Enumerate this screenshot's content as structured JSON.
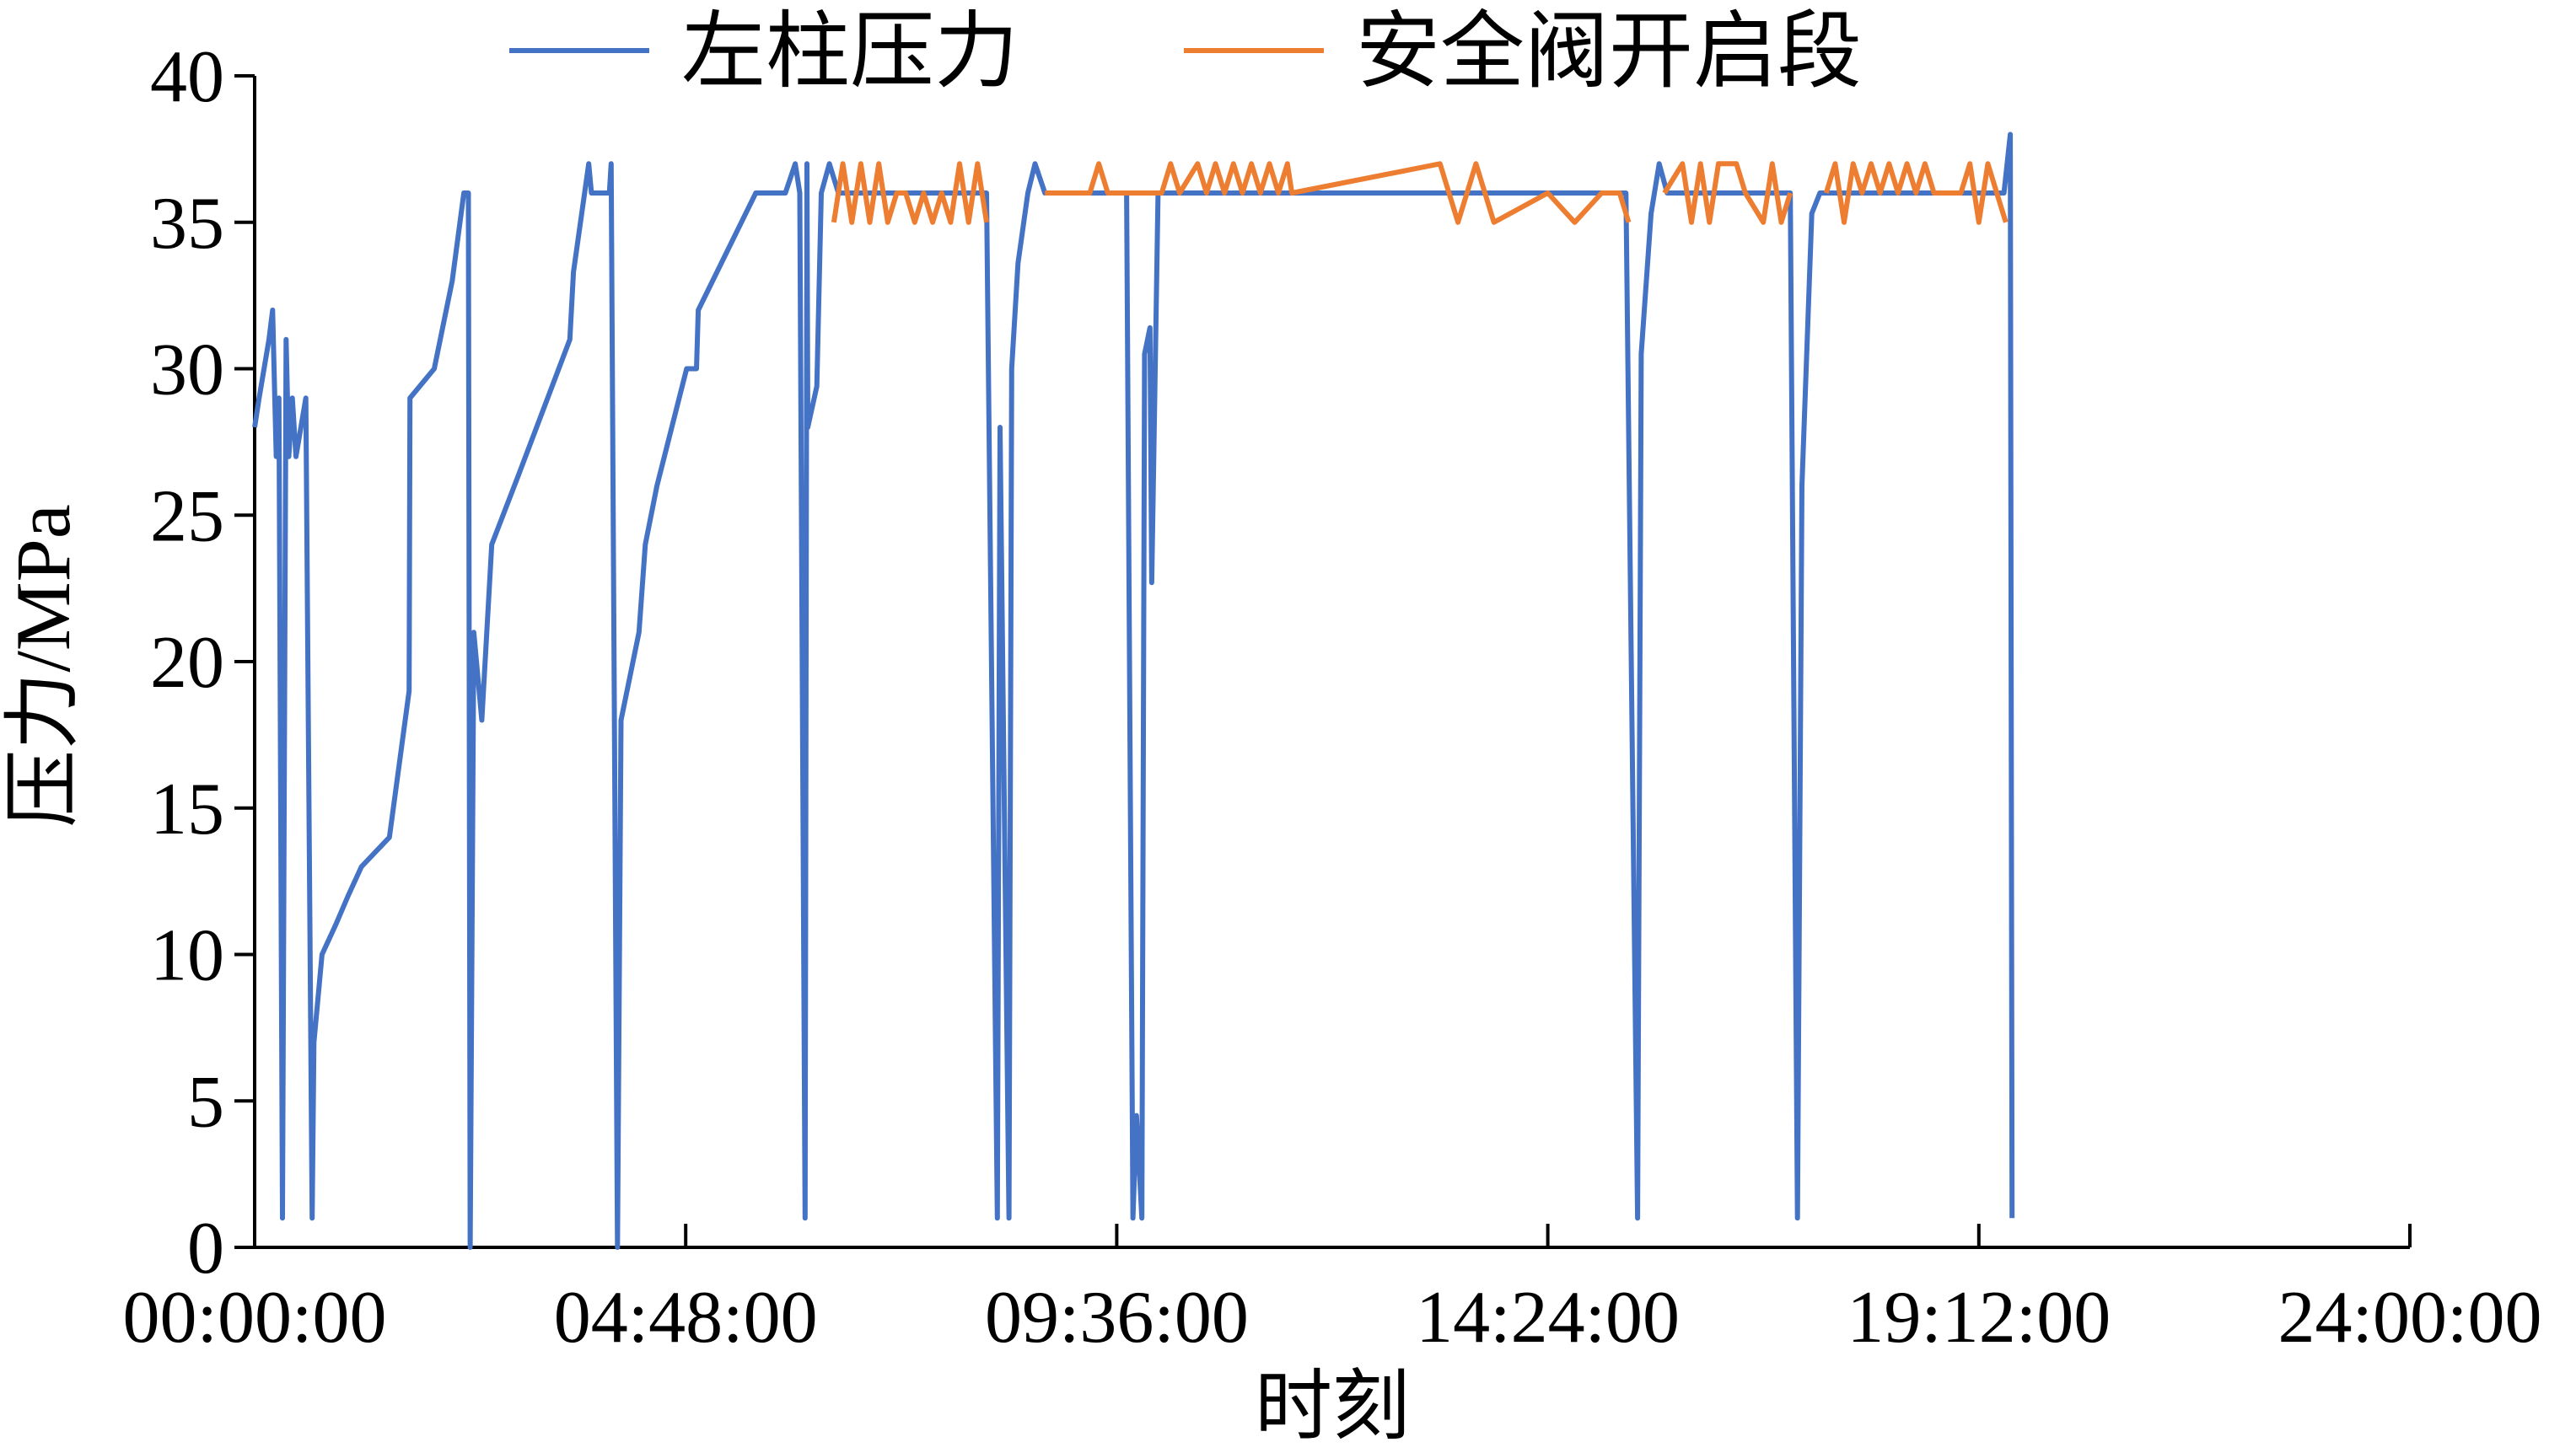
{
  "chart_data": {
    "type": "line",
    "x_label": "时刻",
    "y_label": "压力/MPa",
    "xlim": [
      0,
      24
    ],
    "xticks": [
      {
        "value": 0,
        "label": "00:00:00"
      },
      {
        "value": 4.8,
        "label": "04:48:00"
      },
      {
        "value": 9.6,
        "label": "09:36:00"
      },
      {
        "value": 14.4,
        "label": "14:24:00"
      },
      {
        "value": 19.2,
        "label": "19:12:00"
      },
      {
        "value": 24,
        "label": "24:00:00"
      }
    ],
    "ylim": [
      0,
      40
    ],
    "yticks": [
      0,
      5,
      10,
      15,
      20,
      25,
      30,
      35,
      40
    ],
    "series": [
      {
        "name": "左柱压力",
        "color": "#4472c4",
        "x": [
          0,
          0.05,
          0.16,
          0.2,
          0.24,
          0.27,
          0.31,
          0.35,
          0.38,
          0.42,
          0.46,
          0.57,
          0.64,
          0.66,
          0.75,
          0.9,
          1.04,
          1.19,
          1.5,
          1.72,
          1.73,
          2.0,
          2.2,
          2.33,
          2.38,
          2.4,
          2.44,
          2.53,
          2.64,
          2.93,
          3.51,
          3.55,
          3.72,
          3.75,
          3.95,
          3.97,
          4.04,
          4.08,
          4.28,
          4.35,
          4.48,
          4.81,
          4.92,
          4.94,
          5.58,
          5.91,
          6.02,
          6.07,
          6.13,
          6.15,
          6.16,
          6.26,
          6.31,
          6.4,
          6.5,
          8.15,
          8.27,
          8.3,
          8.4,
          8.43,
          8.5,
          8.61,
          8.69,
          8.8,
          9.71,
          9.78,
          9.82,
          9.88,
          9.91,
          9.97,
          9.99,
          10.06,
          15.27,
          15.4,
          15.44,
          15.55,
          15.64,
          15.73,
          17.1,
          17.18,
          17.23,
          17.34,
          17.43,
          19.48,
          19.55,
          19.57
        ],
        "values": [
          28,
          29,
          31,
          32,
          27,
          29,
          1,
          31,
          27,
          29,
          27,
          29,
          1,
          7,
          10,
          11,
          12,
          13,
          14,
          19,
          29,
          30,
          33,
          36,
          36,
          0,
          21,
          18,
          24,
          26.3,
          31,
          33.3,
          37,
          36,
          36,
          37,
          0,
          18,
          21,
          24,
          26,
          30,
          30,
          32,
          36,
          36,
          37,
          36,
          1,
          37,
          28,
          29.4,
          36,
          37,
          36,
          36,
          1,
          28,
          1,
          30,
          33.6,
          36,
          37,
          36,
          36,
          1,
          4.5,
          1,
          30.5,
          31.4,
          22.7,
          36,
          36,
          1,
          30.5,
          35.3,
          37,
          36,
          36,
          1,
          26,
          35.3,
          36,
          36,
          38,
          1
        ]
      },
      {
        "name": "安全阀开启段",
        "color": "#ed7d31",
        "x": [
          6.45,
          6.55,
          6.65,
          6.75,
          6.85,
          6.95,
          7.05,
          7.15,
          7.25,
          7.35,
          7.45,
          7.55,
          7.65,
          7.75,
          7.85,
          7.95,
          8.05,
          8.15,
          8.5,
          8.8,
          9.3,
          9.4,
          9.5,
          9.6,
          10.1,
          10.2,
          10.3,
          10.5,
          10.6,
          10.7,
          10.8,
          10.9,
          11.0,
          11.1,
          11.2,
          11.3,
          11.4,
          11.5,
          11.55,
          13.2,
          13.4,
          13.6,
          13.8,
          14.4,
          14.7,
          15.0,
          15.2,
          15.3,
          15.5,
          15.7,
          15.9,
          16.0,
          16.1,
          16.2,
          16.3,
          16.5,
          16.6,
          16.8,
          16.9,
          17.0,
          17.1,
          17.3,
          17.5,
          17.6,
          17.7,
          17.8,
          17.9,
          18.0,
          18.1,
          18.2,
          18.3,
          18.4,
          18.5,
          18.6,
          18.7,
          19.0,
          19.1,
          19.2,
          19.3,
          19.4,
          19.5
        ],
        "values": [
          35,
          37,
          35,
          37,
          35,
          37,
          35,
          36,
          36,
          35,
          36,
          35,
          36,
          35,
          37,
          35,
          37,
          35,
          null,
          36,
          36,
          37,
          36,
          36,
          36,
          37,
          36,
          37,
          36,
          37,
          36,
          37,
          36,
          37,
          36,
          37,
          36,
          37,
          36,
          37,
          35,
          37,
          35,
          36,
          35,
          36,
          36,
          35,
          null,
          36,
          37,
          35,
          37,
          35,
          37,
          37,
          36,
          35,
          37,
          35,
          36,
          null,
          36,
          37,
          35,
          37,
          36,
          37,
          36,
          37,
          36,
          37,
          36,
          37,
          36,
          36,
          37,
          35,
          37,
          36,
          35
        ]
      }
    ]
  }
}
